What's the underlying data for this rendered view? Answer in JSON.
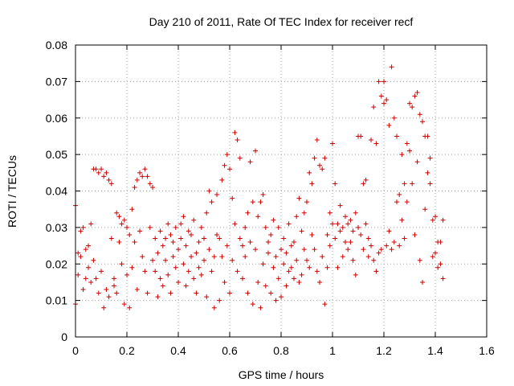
{
  "chart_data": {
    "type": "scatter",
    "title": "Day 210 of 2011, Rate Of TEC Index for receiver recf",
    "xlabel": "GPS time / hours",
    "ylabel": "ROTI / TECUs",
    "xlim": [
      0,
      1.6
    ],
    "ylim": [
      0,
      0.08
    ],
    "x_ticks": [
      "0",
      "0.2",
      "0.4",
      "0.6",
      "0.8",
      "1",
      "1.2",
      "1.4",
      "1.6"
    ],
    "y_ticks": [
      "0",
      "0.01",
      "0.02",
      "0.03",
      "0.04",
      "0.05",
      "0.06",
      "0.07",
      "0.08"
    ],
    "grid": true,
    "marker": "+",
    "color": "#cc0000",
    "points": [
      [
        0.0,
        0.036
      ],
      [
        0.0,
        0.009
      ],
      [
        0.01,
        0.023
      ],
      [
        0.01,
        0.017
      ],
      [
        0.02,
        0.029
      ],
      [
        0.02,
        0.022
      ],
      [
        0.03,
        0.013
      ],
      [
        0.03,
        0.03
      ],
      [
        0.04,
        0.016
      ],
      [
        0.04,
        0.024
      ],
      [
        0.05,
        0.025
      ],
      [
        0.05,
        0.019
      ],
      [
        0.06,
        0.031
      ],
      [
        0.06,
        0.015
      ],
      [
        0.07,
        0.046
      ],
      [
        0.07,
        0.021
      ],
      [
        0.08,
        0.046
      ],
      [
        0.08,
        0.016
      ],
      [
        0.09,
        0.045
      ],
      [
        0.09,
        0.012
      ],
      [
        0.1,
        0.046
      ],
      [
        0.1,
        0.018
      ],
      [
        0.11,
        0.044
      ],
      [
        0.11,
        0.008
      ],
      [
        0.12,
        0.013
      ],
      [
        0.12,
        0.045
      ],
      [
        0.13,
        0.043
      ],
      [
        0.13,
        0.011
      ],
      [
        0.14,
        0.042
      ],
      [
        0.14,
        0.027
      ],
      [
        0.15,
        0.014
      ],
      [
        0.15,
        0.016
      ],
      [
        0.16,
        0.034
      ],
      [
        0.16,
        0.012
      ],
      [
        0.17,
        0.033
      ],
      [
        0.17,
        0.026
      ],
      [
        0.18,
        0.02
      ],
      [
        0.18,
        0.031
      ],
      [
        0.19,
        0.032
      ],
      [
        0.19,
        0.009
      ],
      [
        0.2,
        0.03
      ],
      [
        0.2,
        0.017
      ],
      [
        0.21,
        0.028
      ],
      [
        0.21,
        0.008
      ],
      [
        0.22,
        0.035
      ],
      [
        0.22,
        0.019
      ],
      [
        0.23,
        0.041
      ],
      [
        0.23,
        0.026
      ],
      [
        0.24,
        0.043
      ],
      [
        0.24,
        0.013
      ],
      [
        0.25,
        0.045
      ],
      [
        0.25,
        0.029
      ],
      [
        0.26,
        0.044
      ],
      [
        0.26,
        0.022
      ],
      [
        0.27,
        0.046
      ],
      [
        0.27,
        0.018
      ],
      [
        0.28,
        0.044
      ],
      [
        0.28,
        0.012
      ],
      [
        0.29,
        0.042
      ],
      [
        0.29,
        0.03
      ],
      [
        0.3,
        0.041
      ],
      [
        0.3,
        0.021
      ],
      [
        0.31,
        0.018
      ],
      [
        0.31,
        0.027
      ],
      [
        0.32,
        0.023
      ],
      [
        0.32,
        0.011
      ],
      [
        0.33,
        0.029
      ],
      [
        0.33,
        0.016
      ],
      [
        0.34,
        0.025
      ],
      [
        0.34,
        0.014
      ],
      [
        0.35,
        0.027
      ],
      [
        0.35,
        0.021
      ],
      [
        0.36,
        0.031
      ],
      [
        0.36,
        0.017
      ],
      [
        0.37,
        0.028
      ],
      [
        0.37,
        0.012
      ],
      [
        0.38,
        0.022
      ],
      [
        0.38,
        0.026
      ],
      [
        0.39,
        0.019
      ],
      [
        0.39,
        0.03
      ],
      [
        0.4,
        0.024
      ],
      [
        0.4,
        0.015
      ],
      [
        0.41,
        0.031
      ],
      [
        0.41,
        0.027
      ],
      [
        0.42,
        0.033
      ],
      [
        0.42,
        0.02
      ],
      [
        0.43,
        0.025
      ],
      [
        0.43,
        0.014
      ],
      [
        0.44,
        0.029
      ],
      [
        0.44,
        0.018
      ],
      [
        0.45,
        0.028
      ],
      [
        0.45,
        0.022
      ],
      [
        0.46,
        0.016
      ],
      [
        0.46,
        0.032
      ],
      [
        0.47,
        0.023
      ],
      [
        0.47,
        0.012
      ],
      [
        0.48,
        0.026
      ],
      [
        0.48,
        0.019
      ],
      [
        0.49,
        0.03
      ],
      [
        0.49,
        0.017
      ],
      [
        0.5,
        0.021
      ],
      [
        0.5,
        0.027
      ],
      [
        0.51,
        0.034
      ],
      [
        0.51,
        0.011
      ],
      [
        0.52,
        0.04
      ],
      [
        0.52,
        0.024
      ],
      [
        0.53,
        0.037
      ],
      [
        0.53,
        0.018
      ],
      [
        0.54,
        0.022
      ],
      [
        0.54,
        0.008
      ],
      [
        0.55,
        0.039
      ],
      [
        0.55,
        0.028
      ],
      [
        0.56,
        0.027
      ],
      [
        0.56,
        0.01
      ],
      [
        0.57,
        0.043
      ],
      [
        0.57,
        0.022
      ],
      [
        0.58,
        0.047
      ],
      [
        0.58,
        0.015
      ],
      [
        0.59,
        0.05
      ],
      [
        0.59,
        0.025
      ],
      [
        0.6,
        0.046
      ],
      [
        0.6,
        0.012
      ],
      [
        0.61,
        0.038
      ],
      [
        0.61,
        0.021
      ],
      [
        0.62,
        0.056
      ],
      [
        0.62,
        0.031
      ],
      [
        0.63,
        0.054
      ],
      [
        0.63,
        0.018
      ],
      [
        0.64,
        0.049
      ],
      [
        0.64,
        0.027
      ],
      [
        0.65,
        0.025
      ],
      [
        0.65,
        0.016
      ],
      [
        0.66,
        0.03
      ],
      [
        0.66,
        0.022
      ],
      [
        0.67,
        0.034
      ],
      [
        0.67,
        0.012
      ],
      [
        0.68,
        0.048
      ],
      [
        0.68,
        0.026
      ],
      [
        0.69,
        0.037
      ],
      [
        0.69,
        0.009
      ],
      [
        0.7,
        0.051
      ],
      [
        0.7,
        0.024
      ],
      [
        0.71,
        0.033
      ],
      [
        0.71,
        0.015
      ],
      [
        0.72,
        0.037
      ],
      [
        0.72,
        0.008
      ],
      [
        0.73,
        0.039
      ],
      [
        0.73,
        0.02
      ],
      [
        0.74,
        0.03
      ],
      [
        0.74,
        0.014
      ],
      [
        0.75,
        0.023
      ],
      [
        0.75,
        0.026
      ],
      [
        0.76,
        0.028
      ],
      [
        0.76,
        0.012
      ],
      [
        0.77,
        0.032
      ],
      [
        0.77,
        0.019
      ],
      [
        0.78,
        0.022
      ],
      [
        0.78,
        0.01
      ],
      [
        0.79,
        0.03
      ],
      [
        0.79,
        0.016
      ],
      [
        0.8,
        0.024
      ],
      [
        0.8,
        0.011
      ],
      [
        0.81,
        0.027
      ],
      [
        0.81,
        0.02
      ],
      [
        0.82,
        0.023
      ],
      [
        0.82,
        0.014
      ],
      [
        0.83,
        0.031
      ],
      [
        0.83,
        0.018
      ],
      [
        0.84,
        0.019
      ],
      [
        0.84,
        0.025
      ],
      [
        0.85,
        0.026
      ],
      [
        0.85,
        0.016
      ],
      [
        0.86,
        0.033
      ],
      [
        0.86,
        0.021
      ],
      [
        0.87,
        0.038
      ],
      [
        0.87,
        0.015
      ],
      [
        0.88,
        0.029
      ],
      [
        0.88,
        0.017
      ],
      [
        0.89,
        0.024
      ],
      [
        0.89,
        0.034
      ],
      [
        0.9,
        0.037
      ],
      [
        0.9,
        0.021
      ],
      [
        0.91,
        0.045
      ],
      [
        0.91,
        0.019
      ],
      [
        0.92,
        0.042
      ],
      [
        0.92,
        0.028
      ],
      [
        0.93,
        0.049
      ],
      [
        0.93,
        0.024
      ],
      [
        0.94,
        0.054
      ],
      [
        0.94,
        0.018
      ],
      [
        0.95,
        0.047
      ],
      [
        0.95,
        0.015
      ],
      [
        0.96,
        0.046
      ],
      [
        0.96,
        0.022
      ],
      [
        0.97,
        0.049
      ],
      [
        0.97,
        0.009
      ],
      [
        0.98,
        0.028
      ],
      [
        0.98,
        0.019
      ],
      [
        0.99,
        0.034
      ],
      [
        0.99,
        0.025
      ],
      [
        1.0,
        0.053
      ],
      [
        1.0,
        0.031
      ],
      [
        1.01,
        0.042
      ],
      [
        1.01,
        0.027
      ],
      [
        1.02,
        0.031
      ],
      [
        1.02,
        0.019
      ],
      [
        1.03,
        0.029
      ],
      [
        1.03,
        0.036
      ],
      [
        1.04,
        0.03
      ],
      [
        1.04,
        0.022
      ],
      [
        1.05,
        0.026
      ],
      [
        1.05,
        0.033
      ],
      [
        1.06,
        0.031
      ],
      [
        1.06,
        0.024
      ],
      [
        1.07,
        0.032
      ],
      [
        1.07,
        0.026
      ],
      [
        1.08,
        0.029
      ],
      [
        1.08,
        0.021
      ],
      [
        1.09,
        0.034
      ],
      [
        1.09,
        0.017
      ],
      [
        1.1,
        0.055
      ],
      [
        1.1,
        0.03
      ],
      [
        1.11,
        0.055
      ],
      [
        1.11,
        0.028
      ],
      [
        1.12,
        0.042
      ],
      [
        1.12,
        0.024
      ],
      [
        1.13,
        0.043
      ],
      [
        1.13,
        0.031
      ],
      [
        1.14,
        0.027
      ],
      [
        1.14,
        0.022
      ],
      [
        1.15,
        0.054
      ],
      [
        1.15,
        0.025
      ],
      [
        1.16,
        0.063
      ],
      [
        1.16,
        0.021
      ],
      [
        1.17,
        0.053
      ],
      [
        1.17,
        0.018
      ],
      [
        1.18,
        0.07
      ],
      [
        1.18,
        0.023
      ],
      [
        1.19,
        0.066
      ],
      [
        1.19,
        0.024
      ],
      [
        1.2,
        0.07
      ],
      [
        1.2,
        0.064
      ],
      [
        1.21,
        0.065
      ],
      [
        1.21,
        0.025
      ],
      [
        1.22,
        0.058
      ],
      [
        1.22,
        0.029
      ],
      [
        1.23,
        0.074
      ],
      [
        1.23,
        0.024
      ],
      [
        1.24,
        0.06
      ],
      [
        1.24,
        0.026
      ],
      [
        1.25,
        0.055
      ],
      [
        1.25,
        0.037
      ],
      [
        1.26,
        0.039
      ],
      [
        1.26,
        0.025
      ],
      [
        1.27,
        0.05
      ],
      [
        1.27,
        0.032
      ],
      [
        1.28,
        0.042
      ],
      [
        1.28,
        0.027
      ],
      [
        1.29,
        0.053
      ],
      [
        1.29,
        0.037
      ],
      [
        1.3,
        0.064
      ],
      [
        1.3,
        0.051
      ],
      [
        1.31,
        0.063
      ],
      [
        1.31,
        0.042
      ],
      [
        1.32,
        0.066
      ],
      [
        1.32,
        0.028
      ],
      [
        1.33,
        0.067
      ],
      [
        1.33,
        0.048
      ],
      [
        1.34,
        0.061
      ],
      [
        1.34,
        0.021
      ],
      [
        1.35,
        0.059
      ],
      [
        1.35,
        0.015
      ],
      [
        1.36,
        0.055
      ],
      [
        1.36,
        0.035
      ],
      [
        1.37,
        0.055
      ],
      [
        1.37,
        0.045
      ],
      [
        1.38,
        0.049
      ],
      [
        1.38,
        0.042
      ],
      [
        1.39,
        0.032
      ],
      [
        1.39,
        0.022
      ],
      [
        1.4,
        0.033
      ],
      [
        1.4,
        0.023
      ],
      [
        1.41,
        0.026
      ],
      [
        1.41,
        0.019
      ],
      [
        1.42,
        0.026
      ],
      [
        1.42,
        0.02
      ],
      [
        1.43,
        0.032
      ],
      [
        1.43,
        0.016
      ]
    ]
  }
}
